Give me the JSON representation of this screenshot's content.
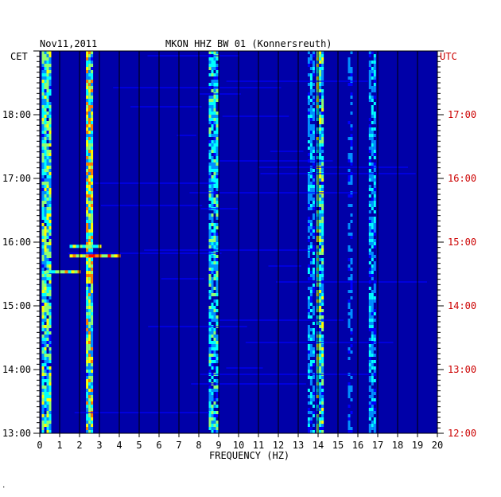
{
  "header": {
    "date": "Nov11,2011",
    "station": "MKON HHZ BW 01 (Konnersreuth)",
    "left_zone": "CET",
    "right_zone": "UTC"
  },
  "footer": {
    "mark": "."
  },
  "colors": {
    "background": "#0000a8",
    "right_axis_text": "#cc0000",
    "grid": "#000000",
    "colormap": [
      "#00008c",
      "#0000ff",
      "#0090ff",
      "#00ffff",
      "#90ff70",
      "#ffff00",
      "#ff8000",
      "#ff0000"
    ]
  },
  "chart_data": {
    "type": "heatmap",
    "title": "MKON HHZ BW 01 (Konnersreuth)",
    "subtitle": "Nov11,2011",
    "xlabel": "FREQUENCY (HZ)",
    "xlim": [
      0,
      20
    ],
    "x_ticks": [
      0,
      1,
      2,
      3,
      4,
      5,
      6,
      7,
      8,
      9,
      10,
      11,
      12,
      13,
      14,
      15,
      16,
      17,
      18,
      19,
      20
    ],
    "y_left_label": "CET",
    "y_left_ticks": [
      "18:00",
      "17:00",
      "16:00",
      "15:00",
      "14:00",
      "13:00"
    ],
    "y_right_label": "UTC",
    "y_right_ticks": [
      "17:00",
      "16:00",
      "15:00",
      "14:00",
      "13:00",
      "12:00"
    ],
    "time_range_cet": [
      "13:00",
      "19:00"
    ],
    "grid": true,
    "spectral_bands": [
      {
        "center_hz": 0.3,
        "width_hz": 0.4,
        "intensity": 0.55
      },
      {
        "center_hz": 2.5,
        "width_hz": 0.35,
        "intensity": 0.7
      },
      {
        "center_hz": 8.7,
        "width_hz": 0.4,
        "intensity": 0.45
      },
      {
        "center_hz": 13.6,
        "width_hz": 0.25,
        "intensity": 0.35
      },
      {
        "center_hz": 14.1,
        "width_hz": 0.35,
        "intensity": 0.55
      },
      {
        "center_hz": 15.6,
        "width_hz": 0.2,
        "intensity": 0.25
      },
      {
        "center_hz": 16.7,
        "width_hz": 0.3,
        "intensity": 0.35
      }
    ],
    "events": [
      {
        "time_cet": "15:47",
        "from_hz": 1.5,
        "to_hz": 4.0,
        "intensity": 0.95
      },
      {
        "time_cet": "15:32",
        "from_hz": 0.3,
        "to_hz": 2.0,
        "intensity": 0.75
      },
      {
        "time_cet": "15:56",
        "from_hz": 1.5,
        "to_hz": 3.0,
        "intensity": 0.7
      }
    ]
  }
}
